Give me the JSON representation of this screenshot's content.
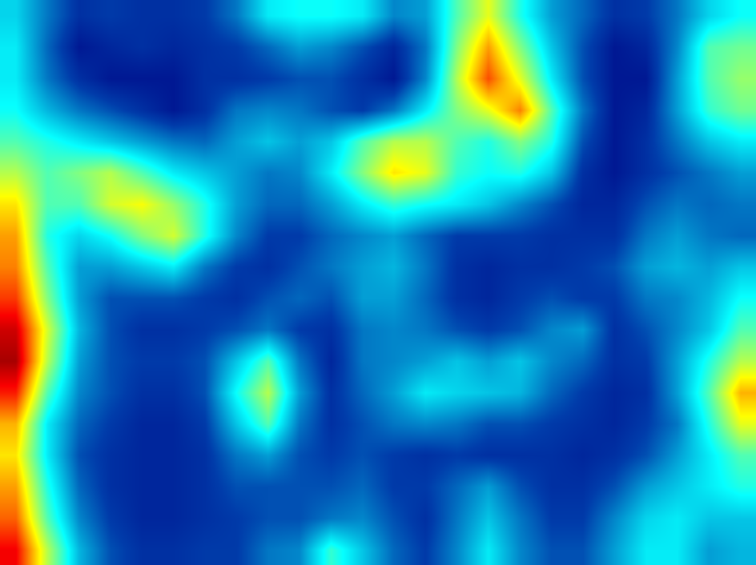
{
  "chart_data": {
    "type": "heatmap",
    "color": "Jet",
    "tick_labels": false,
    "zlim": [
      0,
      100
    ],
    "cells": [
      [
        32,
        20,
        10,
        12,
        10,
        10,
        12,
        20,
        35,
        38,
        38,
        35,
        22,
        25,
        45,
        60,
        40,
        25,
        18,
        10,
        12,
        20,
        32,
        38
      ],
      [
        35,
        18,
        5,
        8,
        10,
        8,
        10,
        12,
        18,
        25,
        22,
        15,
        8,
        20,
        50,
        72,
        50,
        30,
        15,
        5,
        8,
        22,
        45,
        48
      ],
      [
        35,
        20,
        10,
        5,
        5,
        5,
        10,
        10,
        12,
        15,
        15,
        10,
        5,
        22,
        55,
        80,
        60,
        35,
        15,
        5,
        5,
        25,
        45,
        52
      ],
      [
        38,
        28,
        20,
        15,
        10,
        5,
        10,
        20,
        22,
        20,
        15,
        12,
        20,
        35,
        50,
        60,
        75,
        45,
        20,
        5,
        8,
        25,
        42,
        48
      ],
      [
        45,
        40,
        35,
        30,
        25,
        20,
        18,
        25,
        30,
        25,
        30,
        45,
        55,
        55,
        45,
        40,
        50,
        40,
        15,
        5,
        10,
        20,
        30,
        35
      ],
      [
        55,
        45,
        50,
        55,
        45,
        35,
        30,
        25,
        20,
        22,
        35,
        50,
        65,
        60,
        42,
        38,
        40,
        30,
        10,
        5,
        10,
        15,
        20,
        25
      ],
      [
        65,
        45,
        45,
        58,
        62,
        52,
        40,
        25,
        18,
        18,
        25,
        35,
        42,
        38,
        35,
        30,
        22,
        15,
        8,
        8,
        15,
        20,
        18,
        20
      ],
      [
        72,
        40,
        32,
        38,
        50,
        58,
        40,
        22,
        12,
        12,
        18,
        22,
        25,
        18,
        12,
        12,
        12,
        10,
        10,
        10,
        20,
        25,
        20,
        18
      ],
      [
        75,
        45,
        25,
        25,
        30,
        35,
        20,
        12,
        10,
        15,
        20,
        25,
        28,
        20,
        10,
        8,
        10,
        10,
        12,
        15,
        25,
        28,
        25,
        30
      ],
      [
        82,
        50,
        25,
        15,
        15,
        15,
        12,
        10,
        15,
        18,
        15,
        25,
        25,
        18,
        10,
        8,
        12,
        15,
        12,
        12,
        20,
        22,
        28,
        38
      ],
      [
        92,
        58,
        28,
        15,
        10,
        10,
        12,
        15,
        20,
        12,
        10,
        20,
        22,
        20,
        15,
        12,
        15,
        22,
        25,
        10,
        15,
        22,
        30,
        45
      ],
      [
        96,
        55,
        25,
        15,
        12,
        12,
        15,
        30,
        45,
        20,
        8,
        20,
        22,
        25,
        30,
        25,
        30,
        22,
        18,
        10,
        12,
        25,
        40,
        55
      ],
      [
        85,
        45,
        22,
        15,
        10,
        10,
        15,
        38,
        55,
        25,
        10,
        18,
        25,
        35,
        32,
        30,
        28,
        18,
        12,
        8,
        10,
        25,
        45,
        70
      ],
      [
        70,
        35,
        18,
        12,
        8,
        8,
        12,
        30,
        45,
        20,
        10,
        15,
        20,
        22,
        20,
        15,
        15,
        12,
        10,
        8,
        12,
        20,
        40,
        60
      ],
      [
        65,
        35,
        15,
        10,
        8,
        8,
        10,
        20,
        25,
        15,
        12,
        15,
        12,
        10,
        12,
        10,
        10,
        10,
        8,
        10,
        15,
        25,
        35,
        45
      ],
      [
        72,
        40,
        18,
        10,
        8,
        8,
        10,
        15,
        15,
        15,
        15,
        18,
        12,
        12,
        18,
        25,
        15,
        10,
        10,
        15,
        25,
        30,
        35,
        40
      ],
      [
        78,
        45,
        22,
        12,
        8,
        8,
        10,
        12,
        15,
        15,
        20,
        22,
        15,
        10,
        20,
        30,
        20,
        12,
        12,
        22,
        32,
        35,
        30,
        30
      ],
      [
        88,
        55,
        28,
        15,
        10,
        10,
        12,
        12,
        20,
        22,
        42,
        30,
        18,
        12,
        22,
        35,
        22,
        15,
        15,
        25,
        35,
        35,
        25,
        28
      ]
    ]
  }
}
